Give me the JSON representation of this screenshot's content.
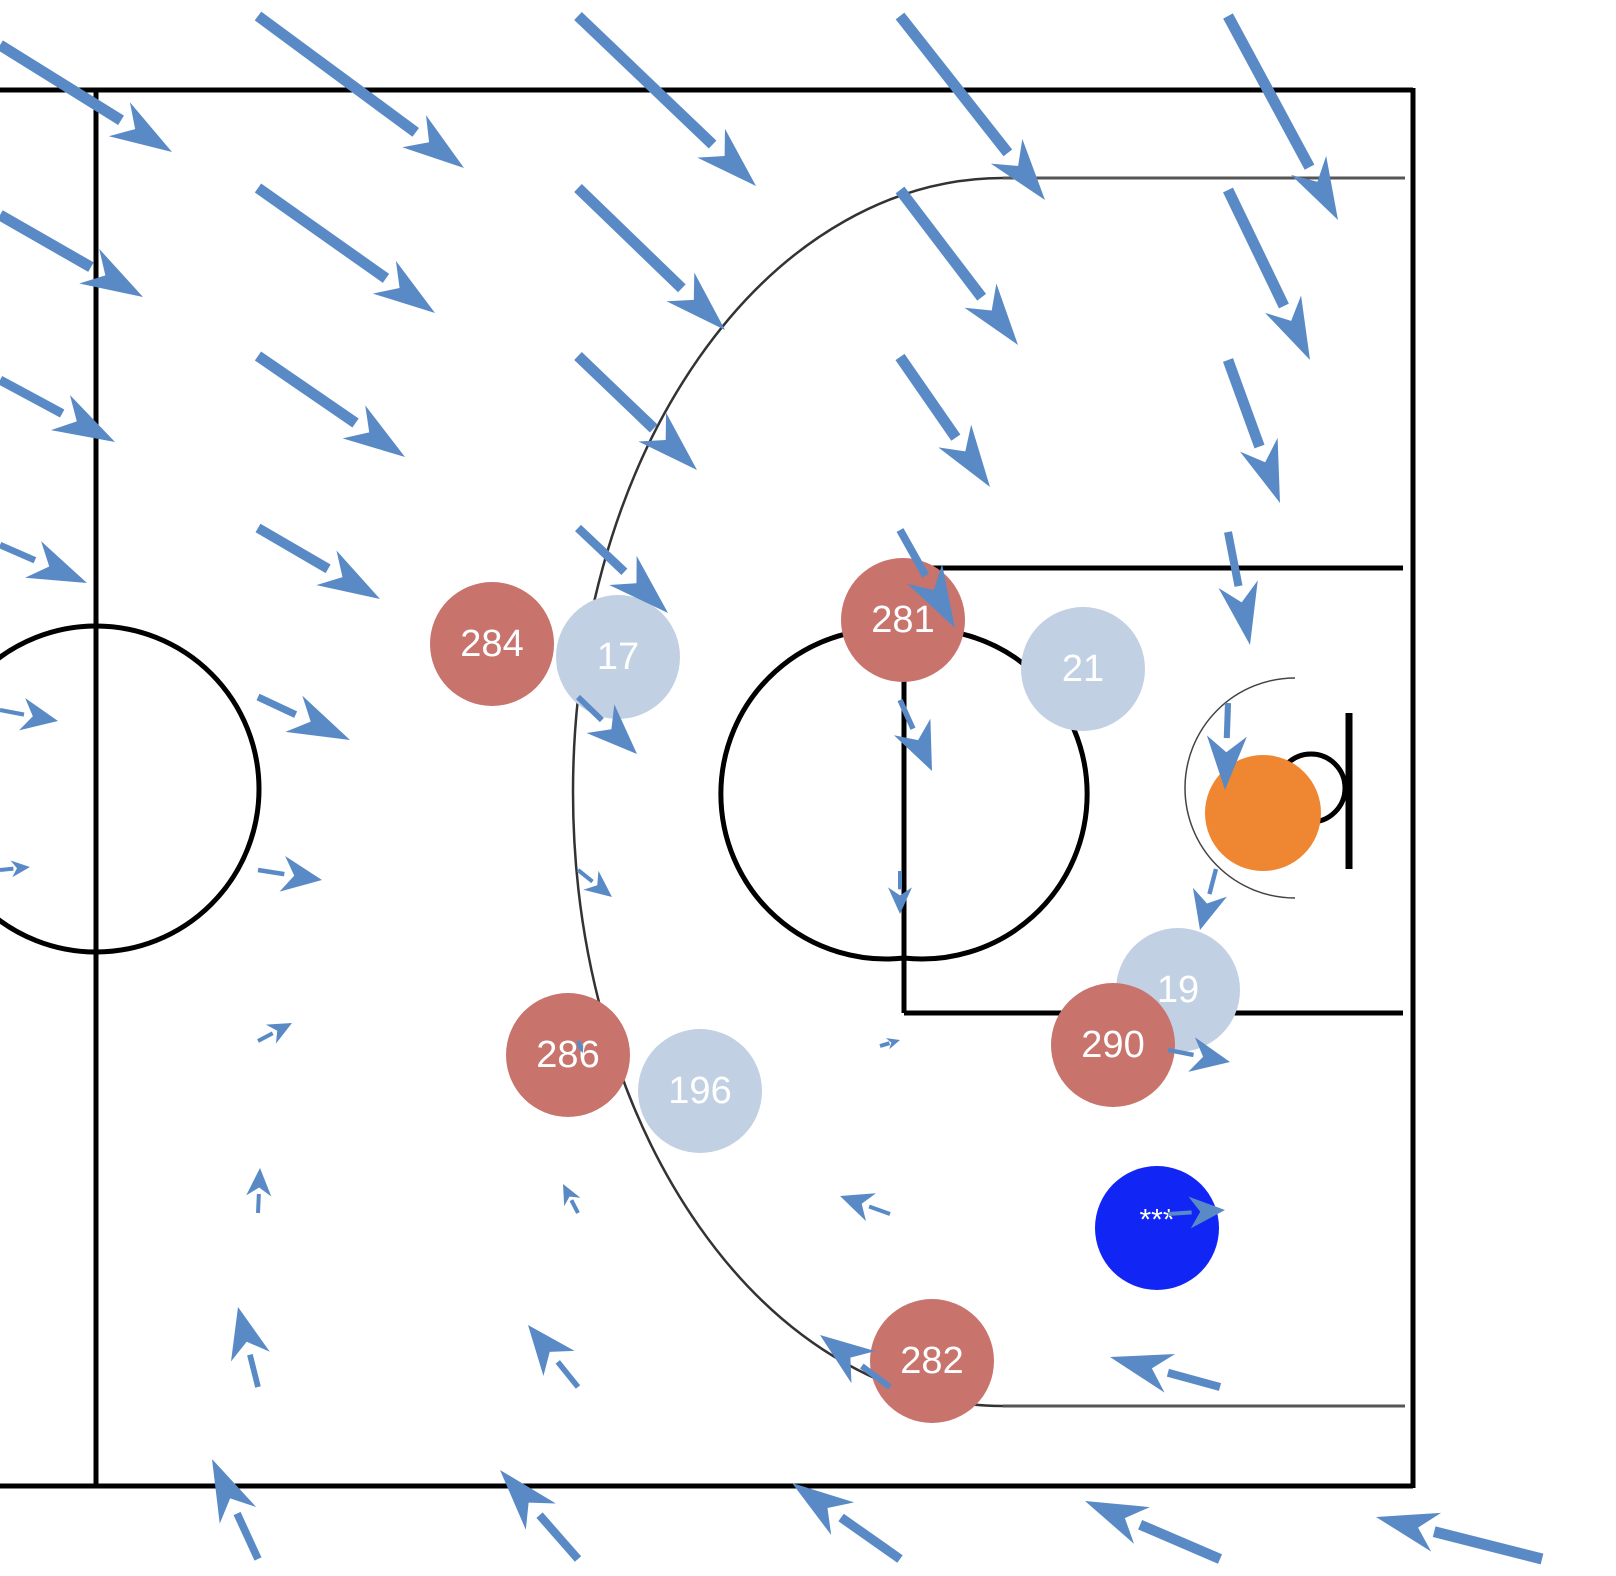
{
  "colors": {
    "arrow": "#5a8ac6",
    "offense_team": "#c9736d",
    "defense_team": "#c2d0e3",
    "ball": "#ef8631",
    "target_marker": "#1126f5",
    "court_lines": "#000000"
  },
  "icons": {
    "ball": "basketball-icon",
    "target": "target-marker-icon",
    "arrow": "flow-arrow-icon"
  },
  "players": {
    "offense": [
      "284",
      "281",
      "286",
      "290",
      "282"
    ],
    "defense": [
      "17",
      "21",
      "19",
      "196"
    ]
  },
  "target_marker": {
    "label": "***"
  }
}
